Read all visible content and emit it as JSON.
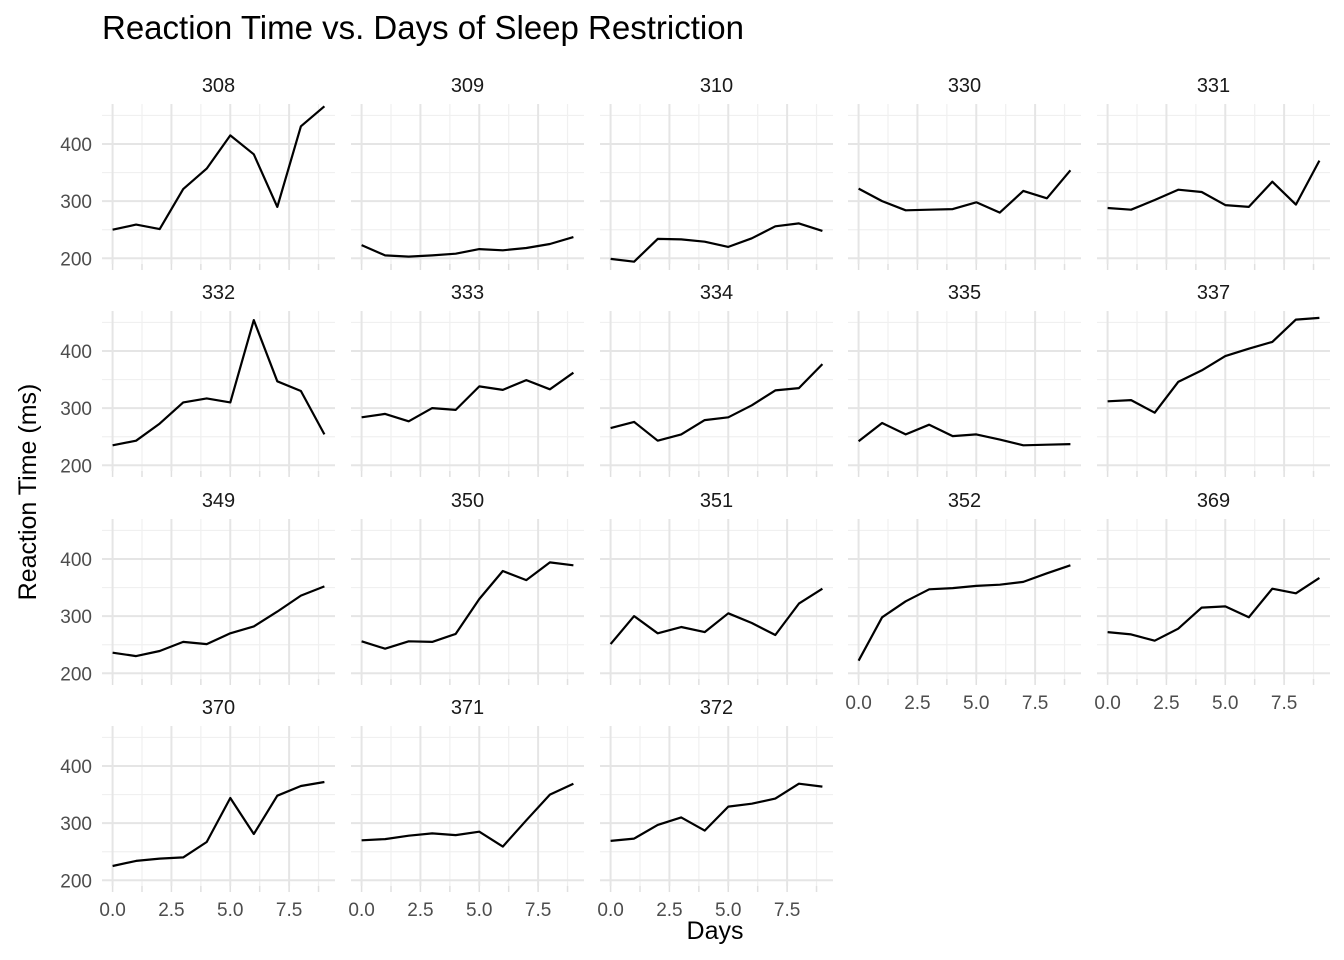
{
  "chart_data": {
    "type": "line",
    "title": "Reaction Time vs. Days of Sleep Restriction",
    "xlabel": "Days",
    "ylabel": "Reaction Time (ms)",
    "xlim": [
      -0.45,
      9.45
    ],
    "ylim": [
      190,
      470
    ],
    "x_major_ticks": [
      0,
      2.5,
      5,
      7.5
    ],
    "x_minor_ticks": [
      1.25,
      3.75,
      6.25,
      8.75
    ],
    "x_tick_labels": [
      "0.0",
      "2.5",
      "5.0",
      "7.5"
    ],
    "y_major_ticks": [
      200,
      300,
      400
    ],
    "y_minor_ticks": [
      250,
      350,
      450
    ],
    "y_tick_labels": [
      "200",
      "300",
      "400"
    ],
    "grid": true,
    "x": [
      0,
      1,
      2,
      3,
      4,
      5,
      6,
      7,
      8,
      9
    ],
    "panels": [
      {
        "name": "308",
        "values": [
          250,
          259,
          251,
          321,
          357,
          415,
          382,
          290,
          431,
          466
        ]
      },
      {
        "name": "309",
        "values": [
          223,
          205,
          203,
          205,
          208,
          216,
          214,
          218,
          225,
          237
        ]
      },
      {
        "name": "310",
        "values": [
          199,
          194,
          234,
          233,
          229,
          220,
          235,
          256,
          261,
          248
        ]
      },
      {
        "name": "330",
        "values": [
          322,
          300,
          284,
          285,
          286,
          298,
          280,
          318,
          305,
          354
        ]
      },
      {
        "name": "331",
        "values": [
          288,
          285,
          302,
          320,
          316,
          293,
          290,
          334,
          294,
          371
        ]
      },
      {
        "name": "332",
        "values": [
          235,
          243,
          273,
          310,
          317,
          310,
          454,
          347,
          330,
          254
        ]
      },
      {
        "name": "333",
        "values": [
          284,
          290,
          277,
          300,
          297,
          338,
          332,
          349,
          333,
          362
        ]
      },
      {
        "name": "334",
        "values": [
          265,
          276,
          243,
          254,
          279,
          284,
          305,
          331,
          335,
          377
        ]
      },
      {
        "name": "335",
        "values": [
          242,
          274,
          254,
          271,
          251,
          254,
          245,
          235,
          236,
          237
        ]
      },
      {
        "name": "337",
        "values": [
          312,
          314,
          292,
          346,
          366,
          391,
          404,
          416,
          455,
          458
        ]
      },
      {
        "name": "349",
        "values": [
          236,
          230,
          239,
          255,
          251,
          270,
          282,
          308,
          336,
          352
        ]
      },
      {
        "name": "350",
        "values": [
          256,
          243,
          256,
          255,
          269,
          330,
          379,
          363,
          394,
          389
        ]
      },
      {
        "name": "351",
        "values": [
          251,
          300,
          270,
          281,
          272,
          305,
          288,
          267,
          322,
          348
        ]
      },
      {
        "name": "352",
        "values": [
          222,
          298,
          326,
          347,
          349,
          353,
          355,
          360,
          375,
          389
        ]
      },
      {
        "name": "369",
        "values": [
          272,
          268,
          257,
          278,
          315,
          317,
          298,
          348,
          340,
          367
        ]
      },
      {
        "name": "370",
        "values": [
          225,
          234,
          238,
          240,
          267,
          344,
          281,
          348,
          365,
          372
        ]
      },
      {
        "name": "371",
        "values": [
          270,
          272,
          278,
          282,
          279,
          285,
          259,
          305,
          350,
          369
        ]
      },
      {
        "name": "372",
        "values": [
          269,
          273,
          297,
          310,
          287,
          329,
          334,
          343,
          369,
          364
        ]
      }
    ]
  }
}
